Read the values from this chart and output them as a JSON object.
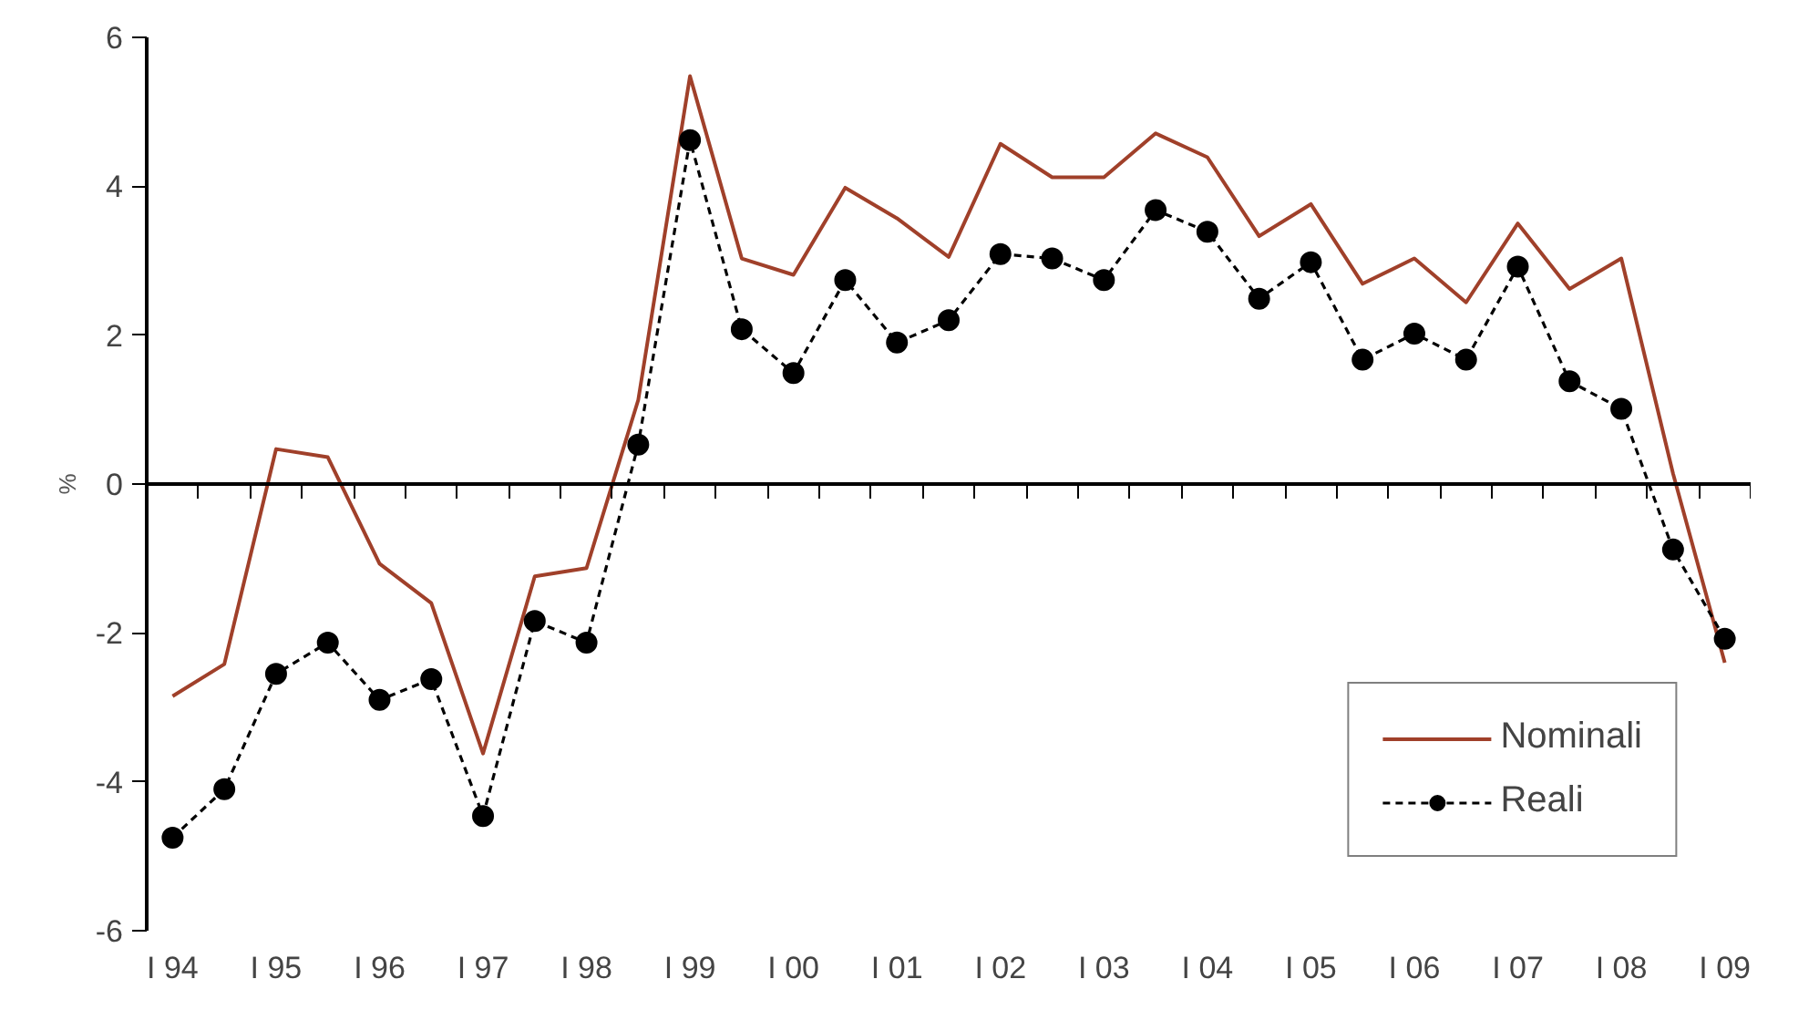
{
  "chart_data": {
    "type": "line",
    "ylabel": "%",
    "categories": [
      "I 94",
      null,
      "I 95",
      null,
      "I 96",
      null,
      "I 97",
      null,
      "I 98",
      null,
      "I 99",
      null,
      "I 00",
      null,
      "I 01",
      null,
      "I 02",
      null,
      "I 03",
      null,
      "I 04",
      null,
      "I 05",
      null,
      "I 06",
      null,
      "I 07",
      null,
      "I 08",
      null,
      "I 09"
    ],
    "series": [
      {
        "name": "Nominali",
        "color": "#a0402a",
        "line_style": "solid",
        "marker": "none",
        "values": [
          -2.85,
          -2.42,
          0.47,
          0.36,
          -1.07,
          -1.6,
          -3.62,
          -1.24,
          -1.13,
          1.13,
          5.48,
          3.03,
          2.81,
          3.98,
          3.57,
          3.05,
          4.57,
          4.12,
          4.12,
          4.71,
          4.39,
          3.33,
          3.76,
          2.69,
          3.03,
          2.44,
          3.5,
          2.62,
          3.03,
          0.14,
          -2.4
        ]
      },
      {
        "name": "Reali",
        "color": "#000000",
        "line_style": "dashed",
        "marker": "circle",
        "values": [
          -4.75,
          -4.1,
          -2.55,
          -2.13,
          -2.9,
          -2.62,
          -4.46,
          -1.84,
          -2.13,
          0.53,
          4.62,
          2.08,
          1.49,
          2.74,
          1.9,
          2.2,
          3.09,
          3.03,
          2.74,
          3.68,
          3.39,
          2.49,
          2.98,
          1.67,
          2.02,
          1.67,
          2.92,
          1.38,
          1.01,
          -0.88,
          -2.08
        ]
      }
    ],
    "ylim": [
      -6,
      6
    ],
    "yticks": [
      -6,
      -4,
      -2,
      0,
      2,
      4,
      6
    ],
    "legend": "bottom right"
  }
}
